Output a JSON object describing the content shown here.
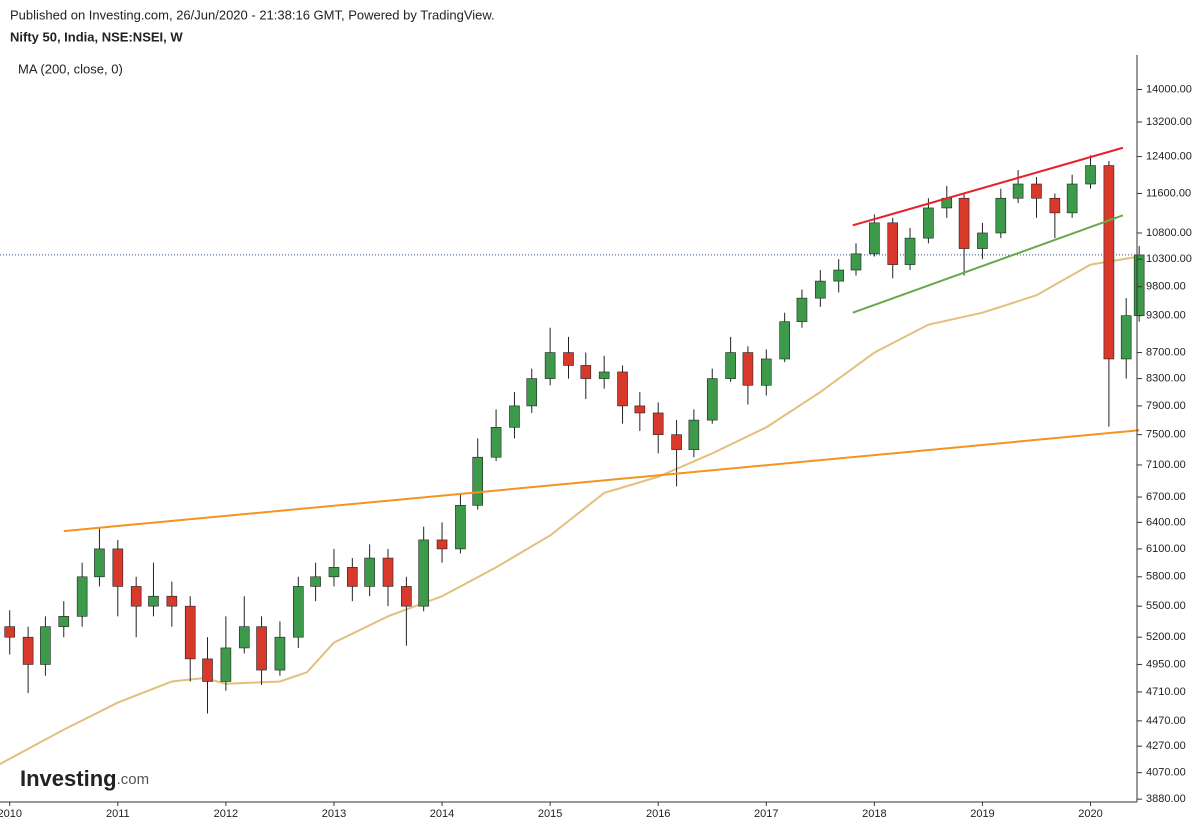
{
  "header": {
    "published": "Published on Investing.com, 26/Jun/2020 - 21:38:16 GMT, Powered by TradingView.",
    "symbol": "Nifty 50, India, NSE:NSEI, W"
  },
  "logo": {
    "brand": "Investing",
    "suffix": ".com"
  },
  "chart_data": {
    "type": "candlestick",
    "log_scale": true,
    "up_color": "#3d9a4a",
    "down_color": "#d8392b",
    "x": [
      2010.0,
      2010.17,
      2010.33,
      2010.5,
      2010.67,
      2010.83,
      2011.0,
      2011.17,
      2011.33,
      2011.5,
      2011.67,
      2011.83,
      2012.0,
      2012.17,
      2012.33,
      2012.5,
      2012.67,
      2012.83,
      2013.0,
      2013.17,
      2013.33,
      2013.5,
      2013.67,
      2013.83,
      2014.0,
      2014.17,
      2014.33,
      2014.5,
      2014.67,
      2014.83,
      2015.0,
      2015.17,
      2015.33,
      2015.5,
      2015.67,
      2015.83,
      2016.0,
      2016.17,
      2016.33,
      2016.5,
      2016.67,
      2016.83,
      2017.0,
      2017.17,
      2017.33,
      2017.5,
      2017.67,
      2017.83,
      2018.0,
      2018.17,
      2018.33,
      2018.5,
      2018.67,
      2018.83,
      2019.0,
      2019.17,
      2019.33,
      2019.5,
      2019.67,
      2019.83,
      2020.0,
      2020.17,
      2020.33,
      2020.45
    ],
    "open": [
      5300,
      5200,
      4950,
      5300,
      5400,
      5800,
      6100,
      5700,
      5500,
      5600,
      5500,
      5000,
      4800,
      5100,
      5300,
      4900,
      5200,
      5700,
      5800,
      5900,
      5700,
      6000,
      5700,
      5500,
      6200,
      6100,
      6600,
      7200,
      7600,
      7900,
      8300,
      8700,
      8500,
      8300,
      8400,
      7900,
      7800,
      7500,
      7300,
      7700,
      8300,
      8700,
      8200,
      8600,
      9200,
      9600,
      9900,
      10100,
      10400,
      11000,
      10200,
      10700,
      11300,
      11500,
      10500,
      10800,
      11500,
      11800,
      11500,
      11200,
      11800,
      12200,
      8600,
      9300
    ],
    "high": [
      5460,
      5300,
      5400,
      5550,
      5950,
      6340,
      6200,
      5800,
      5950,
      5750,
      5600,
      5200,
      5400,
      5600,
      5400,
      5350,
      5800,
      5950,
      6100,
      6000,
      6150,
      6100,
      5800,
      6350,
      6400,
      6750,
      7450,
      7850,
      8100,
      8450,
      9100,
      8950,
      8700,
      8650,
      8500,
      8100,
      7950,
      7700,
      7850,
      8450,
      8950,
      8800,
      8750,
      9350,
      9750,
      10100,
      10300,
      10600,
      11170,
      11100,
      10900,
      11500,
      11760,
      11600,
      11000,
      11700,
      12100,
      11950,
      11600,
      12000,
      12430,
      12300,
      9600,
      10550
    ],
    "low": [
      5040,
      4700,
      4850,
      5200,
      5300,
      5700,
      5400,
      5200,
      5400,
      5300,
      4800,
      4530,
      4720,
      5050,
      4770,
      4850,
      5100,
      5550,
      5700,
      5550,
      5600,
      5500,
      5120,
      5450,
      5950,
      6050,
      6550,
      7150,
      7450,
      7800,
      8200,
      8300,
      8000,
      8150,
      7650,
      7550,
      7250,
      6830,
      7200,
      7650,
      8250,
      7920,
      8050,
      8550,
      9100,
      9450,
      9700,
      10000,
      10350,
      9950,
      10100,
      10600,
      11100,
      10000,
      10300,
      10700,
      11400,
      11100,
      10700,
      11100,
      11700,
      7610,
      8300,
      9200
    ],
    "close": [
      5200,
      4950,
      5300,
      5400,
      5800,
      6100,
      5700,
      5500,
      5600,
      5500,
      5000,
      4800,
      5100,
      5300,
      4900,
      5200,
      5700,
      5800,
      5900,
      5700,
      6000,
      5700,
      5500,
      6200,
      6100,
      6600,
      7200,
      7600,
      7900,
      8300,
      8700,
      8500,
      8300,
      8400,
      7900,
      7800,
      7500,
      7300,
      7700,
      8300,
      8700,
      8200,
      8600,
      9200,
      9600,
      9900,
      10100,
      10400,
      11000,
      10200,
      10700,
      11300,
      11500,
      10500,
      10800,
      11500,
      11800,
      11500,
      11200,
      11800,
      12200,
      8600,
      9300,
      10380
    ],
    "moving_average": {
      "name": "MA (200, close, 0)",
      "color": "#e2c07a",
      "x": [
        2009.9,
        2010.5,
        2011.0,
        2011.5,
        2011.8,
        2012.0,
        2012.5,
        2012.75,
        2013.0,
        2013.5,
        2014.0,
        2014.5,
        2015.0,
        2015.5,
        2016.0,
        2016.5,
        2017.0,
        2017.5,
        2018.0,
        2018.5,
        2019.0,
        2019.5,
        2020.0,
        2020.45
      ],
      "values": [
        4130,
        4400,
        4620,
        4800,
        4830,
        4780,
        4800,
        4880,
        5150,
        5400,
        5600,
        5900,
        6250,
        6750,
        6950,
        7250,
        7600,
        8100,
        8700,
        9150,
        9350,
        9650,
        10200,
        10350
      ]
    },
    "trendlines": [
      {
        "color": "#e8202a",
        "x": [
          2017.8,
          2020.3
        ],
        "y": [
          10950,
          12600
        ]
      },
      {
        "color": "#6aa84f",
        "x": [
          2017.8,
          2020.3
        ],
        "y": [
          9350,
          11150
        ]
      },
      {
        "color": "#f5931e",
        "x": [
          2010.5,
          2020.45
        ],
        "y": [
          6300,
          7560
        ]
      }
    ],
    "last_price": 10380,
    "xlim": [
      2009.91,
      2020.43
    ],
    "xticks": [
      {
        "value": 2010,
        "label": "2010"
      },
      {
        "value": 2011,
        "label": "2011"
      },
      {
        "value": 2012,
        "label": "2012"
      },
      {
        "value": 2013,
        "label": "2013"
      },
      {
        "value": 2014,
        "label": "2014"
      },
      {
        "value": 2015,
        "label": "2015"
      },
      {
        "value": 2016,
        "label": "2016"
      },
      {
        "value": 2017,
        "label": "2017"
      },
      {
        "value": 2018,
        "label": "2018"
      },
      {
        "value": 2019,
        "label": "2019"
      },
      {
        "value": 2020,
        "label": "2020"
      }
    ],
    "ylim": [
      3860,
      14900
    ],
    "yticks": [
      {
        "value": 14000,
        "label": "14000.00"
      },
      {
        "value": 13200,
        "label": "13200.00"
      },
      {
        "value": 12400,
        "label": "12400.00"
      },
      {
        "value": 11600,
        "label": "11600.00"
      },
      {
        "value": 10800,
        "label": "10800.00"
      },
      {
        "value": 10300,
        "label": "10300.00"
      },
      {
        "value": 9800,
        "label": "9800.00"
      },
      {
        "value": 9300,
        "label": "9300.00"
      },
      {
        "value": 8700,
        "label": "8700.00"
      },
      {
        "value": 8300,
        "label": "8300.00"
      },
      {
        "value": 7900,
        "label": "7900.00"
      },
      {
        "value": 7500,
        "label": "7500.00"
      },
      {
        "value": 7100,
        "label": "7100.00"
      },
      {
        "value": 6700,
        "label": "6700.00"
      },
      {
        "value": 6400,
        "label": "6400.00"
      },
      {
        "value": 6100,
        "label": "6100.00"
      },
      {
        "value": 5800,
        "label": "5800.00"
      },
      {
        "value": 5500,
        "label": "5500.00"
      },
      {
        "value": 5200,
        "label": "5200.00"
      },
      {
        "value": 4950,
        "label": "4950.00"
      },
      {
        "value": 4710,
        "label": "4710.00"
      },
      {
        "value": 4470,
        "label": "4470.00"
      },
      {
        "value": 4270,
        "label": "4270.00"
      },
      {
        "value": 4070,
        "label": "4070.00"
      },
      {
        "value": 3880,
        "label": "3880.00"
      }
    ]
  }
}
